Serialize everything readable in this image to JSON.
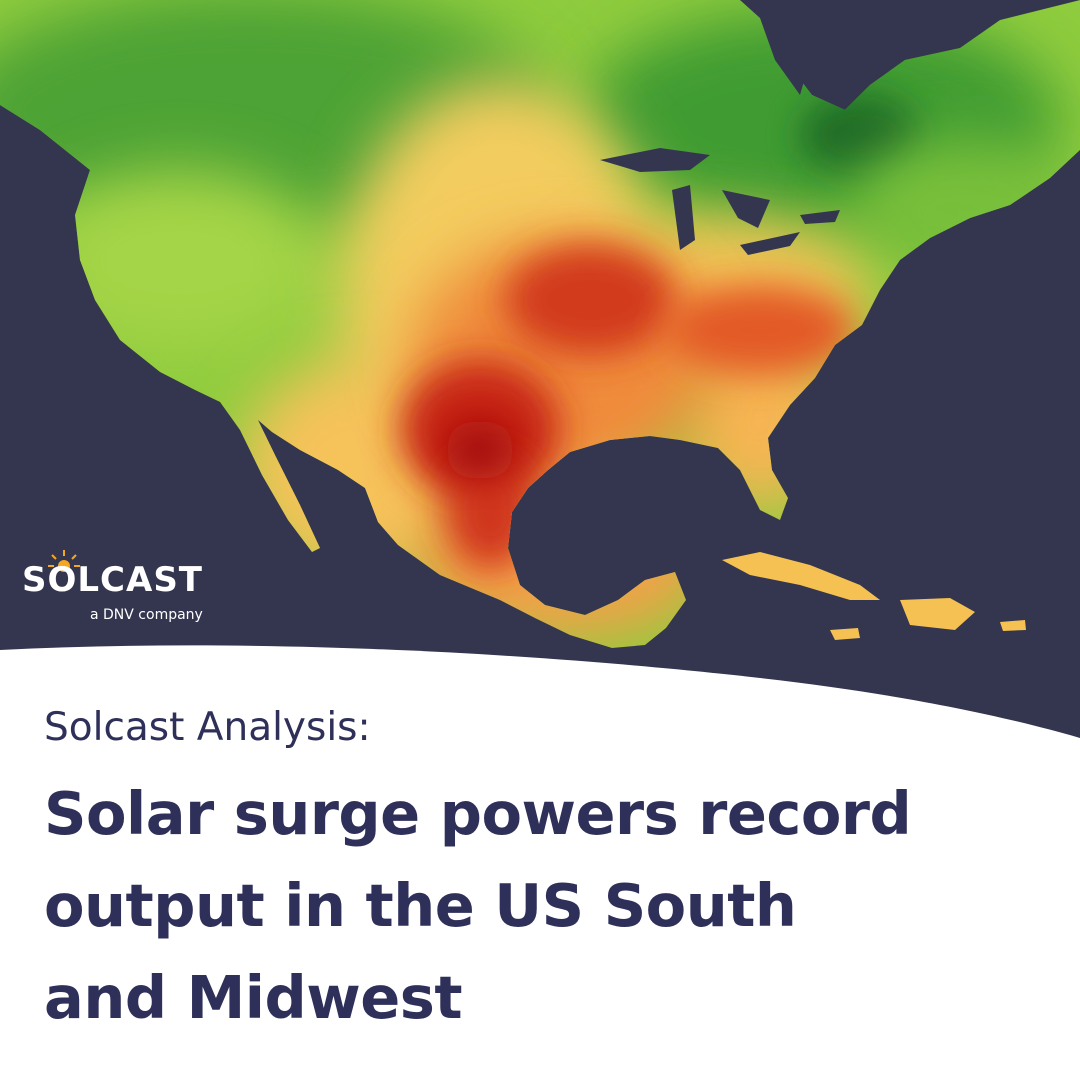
{
  "brand": {
    "name": "SOLCAST",
    "tagline": "a DNV company",
    "logo_icon": "sun-circuit-icon",
    "colors": {
      "navy": "#343650",
      "text": "#2f3059",
      "sun": "#f5a623"
    }
  },
  "heading": {
    "eyebrow": "Solcast Analysis:",
    "lines": [
      "Solar surge powers record",
      "output in the US South",
      "and Midwest"
    ]
  },
  "map": {
    "region": "North America",
    "legend": null,
    "color_scale": [
      "#1f7a2e",
      "#7cc43a",
      "#c9e05a",
      "#f6c35a",
      "#f08a3a",
      "#d9301c",
      "#b0140f"
    ]
  }
}
